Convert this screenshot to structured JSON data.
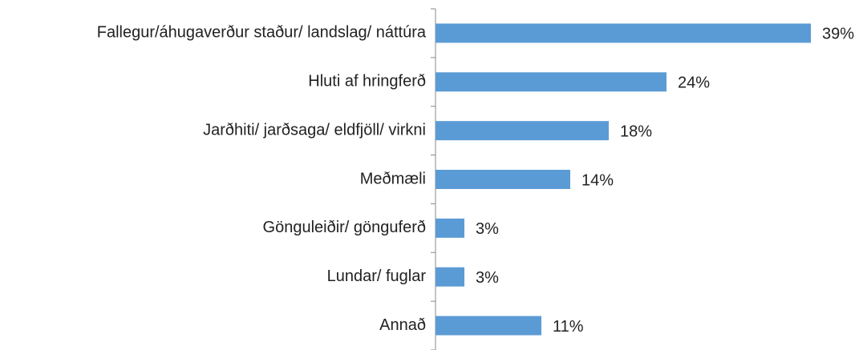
{
  "chart_data": {
    "type": "bar",
    "orientation": "horizontal",
    "categories": [
      "Fallegur/áhugaverður staður/ landslag/ náttúra",
      "Hluti af hringferð",
      "Jarðhiti/ jarðsaga/ eldfjöll/ virkni",
      "Meðmæli",
      "Gönguleiðir/ gönguferð",
      "Lundar/ fuglar",
      "Annað"
    ],
    "values": [
      39,
      24,
      18,
      14,
      3,
      3,
      11
    ],
    "value_labels": [
      "39%",
      "24%",
      "18%",
      "14%",
      "3%",
      "3%",
      "11%"
    ],
    "color": "#5b9bd5"
  }
}
